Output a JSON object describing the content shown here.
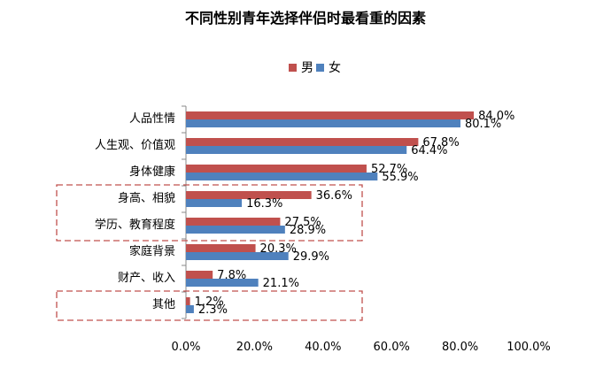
{
  "chart_data": {
    "type": "bar",
    "orientation": "horizontal",
    "title": "不同性别青年选择伴侣时最看重的因素",
    "categories": [
      "人品性情",
      "人生观、价值观",
      "身体健康",
      "身高、相貌",
      "学历、教育程度",
      "家庭背景",
      "财产、收入",
      "其他"
    ],
    "series": [
      {
        "name": "男",
        "color": "#c0504d",
        "values": [
          84.0,
          67.8,
          52.7,
          36.6,
          27.5,
          20.3,
          7.8,
          1.2
        ],
        "labels": [
          "84.0%",
          "67.8%",
          "52.7%",
          "36.6%",
          "27.5%",
          "20.3%",
          "7.8%",
          "1.2%"
        ]
      },
      {
        "name": "女",
        "color": "#4f81bd",
        "values": [
          80.1,
          64.4,
          55.9,
          16.3,
          28.9,
          29.9,
          21.1,
          2.3
        ],
        "labels": [
          "80.1%",
          "64.4%",
          "55.9%",
          "16.3%",
          "28.9%",
          "29.9%",
          "21.1%",
          "2.3%"
        ]
      }
    ],
    "x_ticks": [
      "0.0%",
      "20.0%",
      "40.0%",
      "60.0%",
      "80.0%",
      "100.0%"
    ],
    "xlim": [
      0,
      100
    ],
    "legend": {
      "position": "top",
      "items": [
        "男",
        "女"
      ]
    },
    "highlight_color": "#c0504d"
  }
}
